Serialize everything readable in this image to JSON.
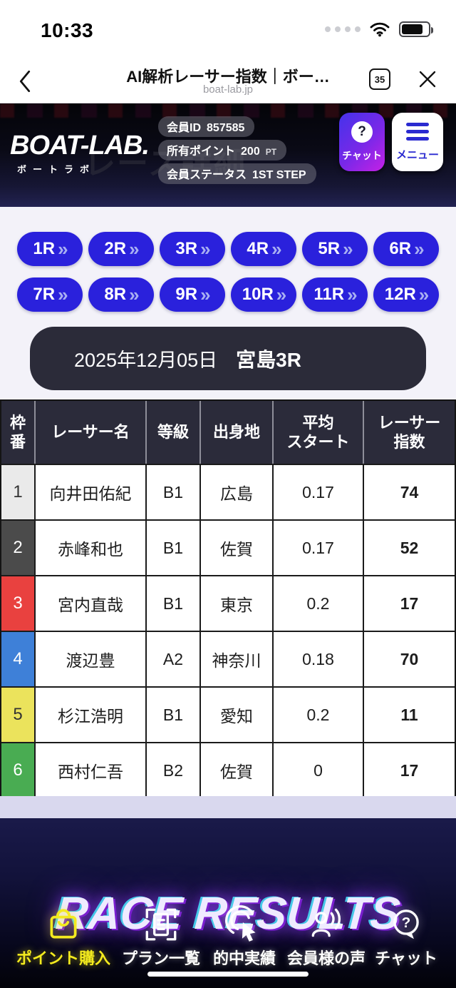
{
  "status_bar": {
    "time": "10:33"
  },
  "browser": {
    "title": "AI解析レーサー指数｜ボー…",
    "url": "boat-lab.jp",
    "tab_count": "35"
  },
  "header": {
    "logo_main": "BOAT-LAB.",
    "logo_sub": "ボートラボ",
    "watermark": "レース詳細",
    "member_id": {
      "label": "会員ID",
      "value": "857585"
    },
    "points": {
      "label": "所有ポイント",
      "value": "200",
      "unit": "PT"
    },
    "status": {
      "label": "会員ステータス",
      "value": "1ST STEP"
    },
    "chat_button": {
      "label": "チャット",
      "icon_glyph": "?"
    },
    "menu_button": {
      "label": "メニュー"
    }
  },
  "race_nav": {
    "buttons": [
      "1R",
      "2R",
      "3R",
      "4R",
      "5R",
      "6R",
      "7R",
      "8R",
      "9R",
      "10R",
      "11R",
      "12R"
    ],
    "chevron": "»"
  },
  "race_info": {
    "date": "2025年12月05日",
    "venue_race": "宮島3R"
  },
  "table": {
    "headers": [
      "枠\n番",
      "レーサー名",
      "等級",
      "出身地",
      "平均\nスタート",
      "レーサー\n指数"
    ],
    "rows": [
      {
        "lane": "1",
        "name": "向井田佑紀",
        "grade": "B1",
        "origin": "広島",
        "avg_start": "0.17",
        "racer_index": "74",
        "lane_color": "#eaeaea",
        "lane_text_color": "#333333"
      },
      {
        "lane": "2",
        "name": "赤峰和也",
        "grade": "B1",
        "origin": "佐賀",
        "avg_start": "0.17",
        "racer_index": "52",
        "lane_color": "#4b4b4b",
        "lane_text_color": "#ffffff"
      },
      {
        "lane": "3",
        "name": "宮内直哉",
        "grade": "B1",
        "origin": "東京",
        "avg_start": "0.2",
        "racer_index": "17",
        "lane_color": "#e9413f",
        "lane_text_color": "#ffffff"
      },
      {
        "lane": "4",
        "name": "渡辺豊",
        "grade": "A2",
        "origin": "神奈川",
        "avg_start": "0.18",
        "racer_index": "70",
        "lane_color": "#3e80d8",
        "lane_text_color": "#ffffff"
      },
      {
        "lane": "5",
        "name": "杉江浩明",
        "grade": "B1",
        "origin": "愛知",
        "avg_start": "0.2",
        "racer_index": "11",
        "lane_color": "#ebe35c",
        "lane_text_color": "#333333"
      },
      {
        "lane": "6",
        "name": "西村仁吾",
        "grade": "B2",
        "origin": "佐賀",
        "avg_start": "0",
        "racer_index": "17",
        "lane_color": "#49ac52",
        "lane_text_color": "#ffffff"
      }
    ]
  },
  "footer": {
    "banner": "RACE RESULTS",
    "nav": [
      {
        "label": "ポイント購入",
        "icon": "shopping-bag-icon",
        "highlight_color": "#f3ea1f"
      },
      {
        "label": "プラン一覧",
        "icon": "plan-list-icon"
      },
      {
        "label": "的中実績",
        "icon": "click-hit-icon"
      },
      {
        "label": "会員様の声",
        "icon": "member-voice-icon"
      },
      {
        "label": "チャット",
        "icon": "chat-question-icon"
      }
    ]
  },
  "colors": {
    "accent_blue": "#2a21dc",
    "dark_panel": "#2b2b39",
    "table_header": "#2b2b3a",
    "chat_gradient_start": "#4433ea",
    "chat_gradient_end": "#c521e5",
    "menu_blue": "#2a2ad0",
    "footer_highlight": "#f3ea1f",
    "banner_glow": "#8a2be2"
  }
}
